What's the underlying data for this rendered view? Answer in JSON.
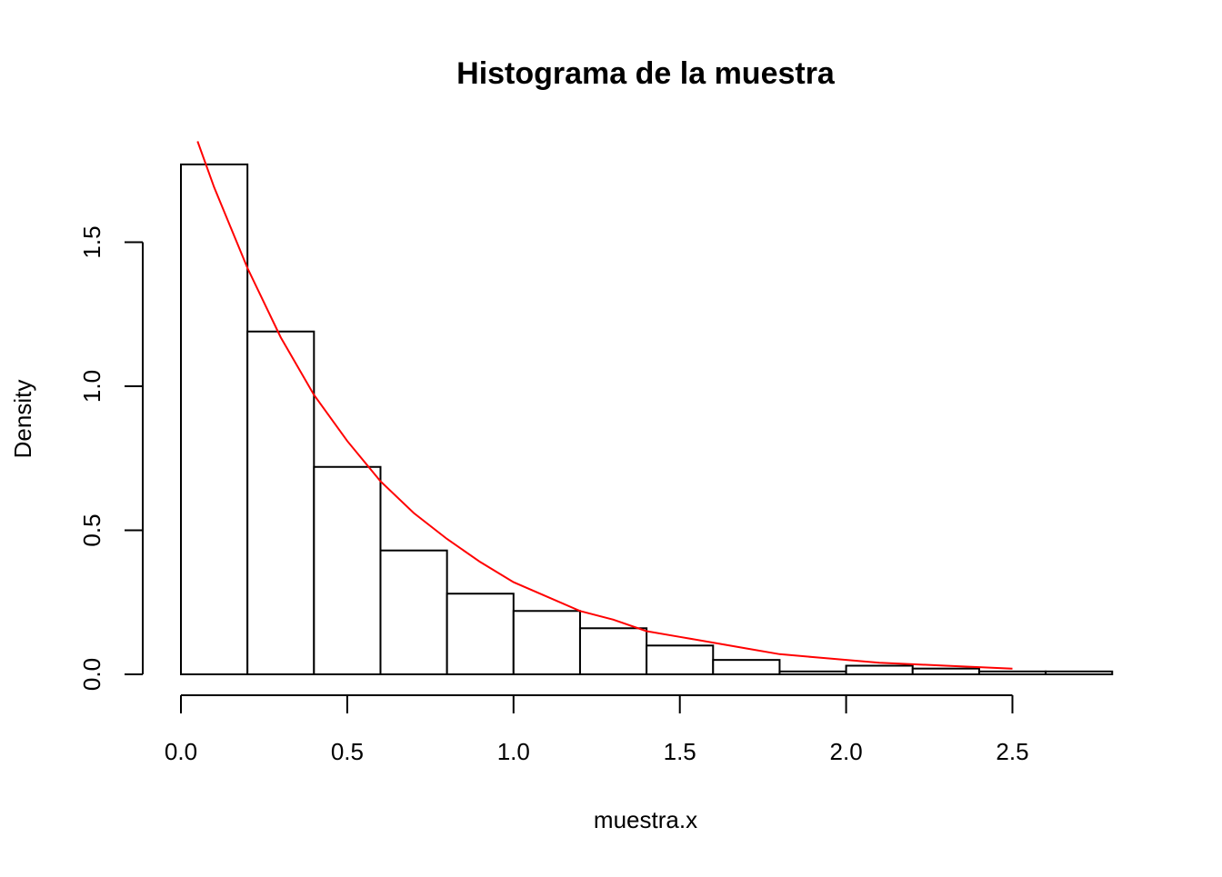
{
  "chart_data": {
    "type": "histogram",
    "title": "Histograma de la muestra",
    "xlabel": "muestra.x",
    "ylabel": "Density",
    "xlim": [
      0,
      2.8
    ],
    "ylim": [
      0,
      1.77
    ],
    "x_ticks": [
      "0.0",
      "0.5",
      "1.0",
      "1.5",
      "2.0",
      "2.5"
    ],
    "x_tick_values": [
      0,
      0.5,
      1.0,
      1.5,
      2.0,
      2.5
    ],
    "y_ticks": [
      "0.0",
      "0.5",
      "1.0",
      "1.5"
    ],
    "y_tick_values": [
      0,
      0.5,
      1.0,
      1.5
    ],
    "bins": [
      {
        "from": 0.0,
        "to": 0.2,
        "density": 1.77
      },
      {
        "from": 0.2,
        "to": 0.4,
        "density": 1.19
      },
      {
        "from": 0.4,
        "to": 0.6,
        "density": 0.72
      },
      {
        "from": 0.6,
        "to": 0.8,
        "density": 0.43
      },
      {
        "from": 0.8,
        "to": 1.0,
        "density": 0.28
      },
      {
        "from": 1.0,
        "to": 1.2,
        "density": 0.22
      },
      {
        "from": 1.2,
        "to": 1.4,
        "density": 0.16
      },
      {
        "from": 1.4,
        "to": 1.6,
        "density": 0.1
      },
      {
        "from": 1.6,
        "to": 1.8,
        "density": 0.05
      },
      {
        "from": 1.8,
        "to": 2.0,
        "density": 0.01
      },
      {
        "from": 2.0,
        "to": 2.2,
        "density": 0.03
      },
      {
        "from": 2.2,
        "to": 2.4,
        "density": 0.02
      },
      {
        "from": 2.4,
        "to": 2.6,
        "density": 0.01
      },
      {
        "from": 2.6,
        "to": 2.8,
        "density": 0.01
      }
    ],
    "curve": {
      "color": "#ff0000",
      "x_range": [
        0.05,
        2.5
      ],
      "points": [
        [
          0.05,
          1.85
        ],
        [
          0.1,
          1.69
        ],
        [
          0.2,
          1.41
        ],
        [
          0.3,
          1.17
        ],
        [
          0.4,
          0.97
        ],
        [
          0.5,
          0.81
        ],
        [
          0.6,
          0.67
        ],
        [
          0.7,
          0.56
        ],
        [
          0.8,
          0.47
        ],
        [
          0.9,
          0.39
        ],
        [
          1.0,
          0.32
        ],
        [
          1.1,
          0.27
        ],
        [
          1.2,
          0.22
        ],
        [
          1.3,
          0.19
        ],
        [
          1.4,
          0.15
        ],
        [
          1.5,
          0.13
        ],
        [
          1.6,
          0.11
        ],
        [
          1.7,
          0.09
        ],
        [
          1.8,
          0.07
        ],
        [
          1.9,
          0.06
        ],
        [
          2.0,
          0.05
        ],
        [
          2.1,
          0.04
        ],
        [
          2.2,
          0.035
        ],
        [
          2.3,
          0.03
        ],
        [
          2.4,
          0.025
        ],
        [
          2.5,
          0.02
        ]
      ]
    },
    "bar_fill": "#ffffff",
    "bar_stroke": "#000000",
    "grid": false
  }
}
